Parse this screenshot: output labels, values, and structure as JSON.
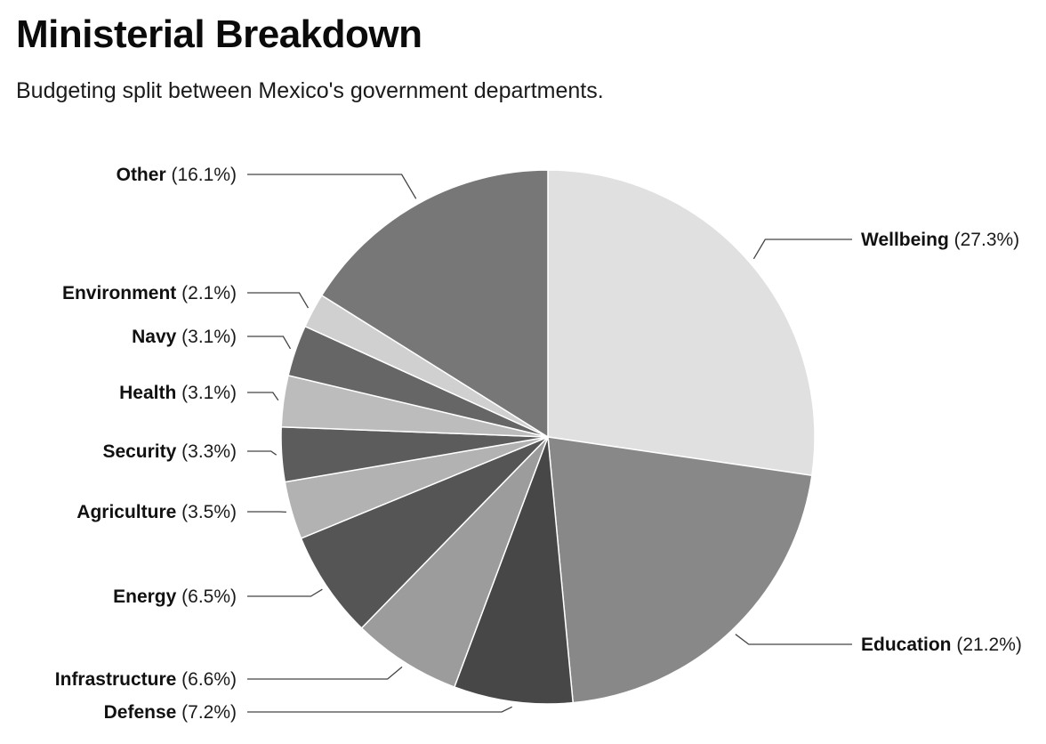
{
  "title": "Ministerial Breakdown",
  "subtitle": "Budgeting split between Mexico's government departments.",
  "chart_data": {
    "type": "pie",
    "title": "Ministerial Breakdown",
    "subtitle": "Budgeting split between Mexico's government departments.",
    "unit": "%",
    "start_angle": "12 o'clock",
    "direction": "clockwise",
    "legend": "none",
    "slices": [
      {
        "name": "Wellbeing",
        "value": 27.3,
        "label": "(27.3%)",
        "color": "#e0e0e0"
      },
      {
        "name": "Education",
        "value": 21.2,
        "label": "(21.2%)",
        "color": "#888888"
      },
      {
        "name": "Defense",
        "value": 7.2,
        "label": "(7.2%)",
        "color": "#474747"
      },
      {
        "name": "Infrastructure",
        "value": 6.6,
        "label": "(6.6%)",
        "color": "#9c9c9c"
      },
      {
        "name": "Energy",
        "value": 6.5,
        "label": "(6.5%)",
        "color": "#555555"
      },
      {
        "name": "Agriculture",
        "value": 3.5,
        "label": "(3.5%)",
        "color": "#b2b2b2"
      },
      {
        "name": "Security",
        "value": 3.3,
        "label": "(3.3%)",
        "color": "#5c5c5c"
      },
      {
        "name": "Health",
        "value": 3.1,
        "label": "(3.1%)",
        "color": "#bcbcbc"
      },
      {
        "name": "Navy",
        "value": 3.1,
        "label": "(3.1%)",
        "color": "#666666"
      },
      {
        "name": "Environment",
        "value": 2.1,
        "label": "(2.1%)",
        "color": "#d0d0d0"
      },
      {
        "name": "Other",
        "value": 16.1,
        "label": "(16.1%)",
        "color": "#777777"
      }
    ]
  }
}
